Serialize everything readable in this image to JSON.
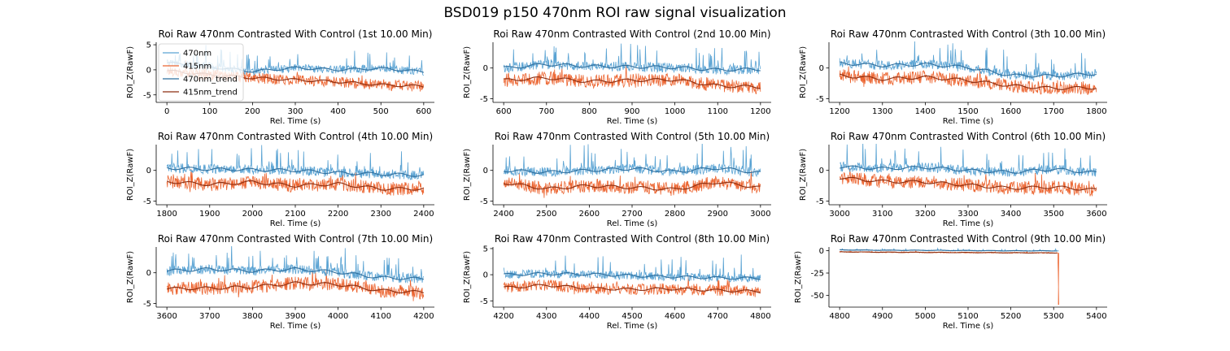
{
  "title": "BSD019 p150 470nm ROI  raw signal visualization",
  "colors": {
    "signal_470": "#5aa3d3",
    "signal_415": "#ec6632",
    "trend_470": "#2f6f9e",
    "trend_415": "#8c2e10"
  },
  "chart_data": [
    {
      "type": "line",
      "title": "Roi Raw 470nm Contrasted With Control (1st 10.00 Min)",
      "xlabel": "Rel. Time (s)",
      "ylabel": "ROI_Z(RawF)",
      "xlim": [
        -25,
        625
      ],
      "ylim": [
        -6.5,
        5.5
      ],
      "xticks": [
        0,
        100,
        200,
        300,
        400,
        500,
        600
      ],
      "yticks": [
        -5,
        0,
        5
      ],
      "data_x_range": [
        0,
        600
      ],
      "legend": {
        "placement": "upper-left",
        "entries": [
          "470nm",
          "415nm",
          "470nm_trend",
          "415nm_trend"
        ]
      },
      "series": [
        {
          "name": "470nm",
          "x": [
            0,
            100,
            200,
            300,
            400,
            500,
            600
          ],
          "values": [
            1.4,
            0.6,
            -0.3,
            0.4,
            0.0,
            0.3,
            -0.4
          ]
        },
        {
          "name": "415nm",
          "x": [
            0,
            100,
            200,
            300,
            400,
            500,
            600
          ],
          "values": [
            -0.2,
            -1.0,
            -1.6,
            -2.0,
            -2.4,
            -3.0,
            -3.3
          ]
        }
      ]
    },
    {
      "type": "line",
      "title": "Roi Raw 470nm Contrasted With Control (2nd 10.00 Min)",
      "xlabel": "Rel. Time (s)",
      "ylabel": "ROI_Z(RawF)",
      "xlim": [
        575,
        1225
      ],
      "ylim": [
        -5.6,
        4.2
      ],
      "xticks": [
        600,
        700,
        800,
        900,
        1000,
        1100,
        1200
      ],
      "yticks": [
        -5,
        0
      ],
      "data_x_range": [
        600,
        1200
      ],
      "series": [
        {
          "name": "470nm",
          "x": [
            600,
            700,
            800,
            900,
            1000,
            1100,
            1200
          ],
          "values": [
            0.0,
            0.6,
            0.3,
            0.2,
            0.1,
            -0.3,
            -0.2
          ]
        },
        {
          "name": "415nm",
          "x": [
            600,
            700,
            800,
            900,
            1000,
            1100,
            1200
          ],
          "values": [
            -2.0,
            -1.6,
            -2.2,
            -2.0,
            -1.9,
            -2.9,
            -3.1
          ]
        }
      ]
    },
    {
      "type": "line",
      "title": "Roi Raw 470nm Contrasted With Control (3th 10.00 Min)",
      "xlabel": "Rel. Time (s)",
      "ylabel": "ROI_Z(RawF)",
      "xlim": [
        1175,
        1825
      ],
      "ylim": [
        -5.6,
        4.2
      ],
      "xticks": [
        1200,
        1300,
        1400,
        1500,
        1600,
        1700,
        1800
      ],
      "yticks": [
        -5,
        0
      ],
      "data_x_range": [
        1200,
        1800
      ],
      "series": [
        {
          "name": "470nm",
          "x": [
            1200,
            1300,
            1400,
            1500,
            1600,
            1700,
            1800
          ],
          "values": [
            0.8,
            0.4,
            0.6,
            0.1,
            -1.2,
            -1.3,
            -0.9
          ]
        },
        {
          "name": "415nm",
          "x": [
            1200,
            1300,
            1400,
            1500,
            1600,
            1700,
            1800
          ],
          "values": [
            -1.2,
            -1.8,
            -1.5,
            -2.0,
            -2.9,
            -3.3,
            -3.2
          ]
        }
      ]
    },
    {
      "type": "line",
      "title": "Roi Raw 470nm Contrasted With Control (4th 10.00 Min)",
      "xlabel": "Rel. Time (s)",
      "ylabel": "ROI_Z(RawF)",
      "xlim": [
        1775,
        2425
      ],
      "ylim": [
        -5.6,
        4.2
      ],
      "xticks": [
        1800,
        1900,
        2000,
        2100,
        2200,
        2300,
        2400
      ],
      "yticks": [
        -5,
        0
      ],
      "data_x_range": [
        1800,
        2400
      ],
      "series": [
        {
          "name": "470nm",
          "x": [
            1800,
            1900,
            2000,
            2100,
            2200,
            2300,
            2400
          ],
          "values": [
            0.4,
            0.2,
            0.1,
            0.0,
            -0.4,
            -0.6,
            -0.8
          ]
        },
        {
          "name": "415nm",
          "x": [
            1800,
            1900,
            2000,
            2100,
            2200,
            2300,
            2400
          ],
          "values": [
            -1.8,
            -2.3,
            -1.9,
            -2.5,
            -2.2,
            -3.0,
            -3.0
          ]
        }
      ]
    },
    {
      "type": "line",
      "title": "Roi Raw 470nm Contrasted With Control (5th 10.00 Min)",
      "xlabel": "Rel. Time (s)",
      "ylabel": "ROI_Z(RawF)",
      "xlim": [
        2375,
        3025
      ],
      "ylim": [
        -5.6,
        4.2
      ],
      "xticks": [
        2400,
        2500,
        2600,
        2700,
        2800,
        2900,
        3000
      ],
      "yticks": [
        -5,
        0
      ],
      "data_x_range": [
        2400,
        3000
      ],
      "series": [
        {
          "name": "470nm",
          "x": [
            2400,
            2500,
            2600,
            2700,
            2800,
            2900,
            3000
          ],
          "values": [
            0.0,
            -0.3,
            0.0,
            0.3,
            -0.2,
            0.4,
            -0.4
          ]
        },
        {
          "name": "415nm",
          "x": [
            2400,
            2500,
            2600,
            2700,
            2800,
            2900,
            3000
          ],
          "values": [
            -2.0,
            -3.0,
            -2.5,
            -2.8,
            -3.1,
            -1.9,
            -2.8
          ]
        }
      ]
    },
    {
      "type": "line",
      "title": "Roi Raw 470nm Contrasted With Control (6th 10.00 Min)",
      "xlabel": "Rel. Time (s)",
      "ylabel": "ROI_Z(RawF)",
      "xlim": [
        2975,
        3625
      ],
      "ylim": [
        -5.6,
        4.2
      ],
      "xticks": [
        3000,
        3100,
        3200,
        3300,
        3400,
        3500,
        3600
      ],
      "yticks": [
        -5,
        0
      ],
      "data_x_range": [
        3000,
        3600
      ],
      "series": [
        {
          "name": "470nm",
          "x": [
            3000,
            3100,
            3200,
            3300,
            3400,
            3500,
            3600
          ],
          "values": [
            0.6,
            0.3,
            0.5,
            0.0,
            -0.3,
            0.2,
            -0.4
          ]
        },
        {
          "name": "415nm",
          "x": [
            3000,
            3100,
            3200,
            3300,
            3400,
            3500,
            3600
          ],
          "values": [
            -1.2,
            -1.8,
            -1.9,
            -2.4,
            -2.9,
            -2.7,
            -3.2
          ]
        }
      ]
    },
    {
      "type": "line",
      "title": "Roi Raw 470nm Contrasted With Control (7th 10.00 Min)",
      "xlabel": "Rel. Time (s)",
      "ylabel": "ROI_Z(RawF)",
      "xlim": [
        3575,
        4225
      ],
      "ylim": [
        -5.6,
        4.2
      ],
      "xticks": [
        3600,
        3700,
        3800,
        3900,
        4000,
        4100,
        4200
      ],
      "yticks": [
        -5,
        0
      ],
      "data_x_range": [
        3600,
        4200
      ],
      "series": [
        {
          "name": "470nm",
          "x": [
            3600,
            3700,
            3800,
            3900,
            4000,
            4100,
            4200
          ],
          "values": [
            0.3,
            0.6,
            0.3,
            0.6,
            0.1,
            -0.8,
            -1.0
          ]
        },
        {
          "name": "415nm",
          "x": [
            3600,
            3700,
            3800,
            3900,
            4000,
            4100,
            4200
          ],
          "values": [
            -2.6,
            -2.5,
            -2.3,
            -1.7,
            -1.9,
            -2.9,
            -3.2
          ]
        }
      ]
    },
    {
      "type": "line",
      "title": "Roi Raw 470nm Contrasted With Control (8th 10.00 Min)",
      "xlabel": "Rel. Time (s)",
      "ylabel": "ROI_Z(RawF)",
      "xlim": [
        4175,
        4825
      ],
      "ylim": [
        -6.2,
        5.3
      ],
      "xticks": [
        4200,
        4300,
        4400,
        4500,
        4600,
        4700,
        4800
      ],
      "yticks": [
        -5,
        0,
        5
      ],
      "data_x_range": [
        4200,
        4800
      ],
      "series": [
        {
          "name": "470nm",
          "x": [
            4200,
            4300,
            4400,
            4500,
            4600,
            4700,
            4800
          ],
          "values": [
            0.0,
            0.2,
            0.1,
            -0.2,
            -0.4,
            -0.6,
            -0.7
          ]
        },
        {
          "name": "415nm",
          "x": [
            4200,
            4300,
            4400,
            4500,
            4600,
            4700,
            4800
          ],
          "values": [
            -2.5,
            -2.0,
            -2.6,
            -2.8,
            -2.7,
            -3.0,
            -3.2
          ]
        }
      ]
    },
    {
      "type": "line",
      "title": "Roi Raw 470nm Contrasted With Control (9th 10.00 Min)",
      "xlabel": "Rel. Time (s)",
      "ylabel": "ROI_Z(RawF)",
      "xlim": [
        4775,
        5425
      ],
      "ylim": [
        -63,
        4
      ],
      "xticks": [
        4800,
        4900,
        5000,
        5100,
        5200,
        5300,
        5400
      ],
      "yticks": [
        -50,
        -25,
        0
      ],
      "data_x_range": [
        4800,
        5312
      ],
      "series": [
        {
          "name": "470nm",
          "x": [
            4800,
            4900,
            5000,
            5100,
            5200,
            5312
          ],
          "values": [
            0.8,
            0.4,
            0.3,
            0.0,
            -0.2,
            -0.3
          ]
        },
        {
          "name": "415nm",
          "x": [
            4800,
            4900,
            5000,
            5100,
            5200,
            5310,
            5312
          ],
          "values": [
            -1.4,
            -1.8,
            -2.0,
            -2.2,
            -2.4,
            -2.6,
            -60
          ]
        }
      ]
    }
  ]
}
